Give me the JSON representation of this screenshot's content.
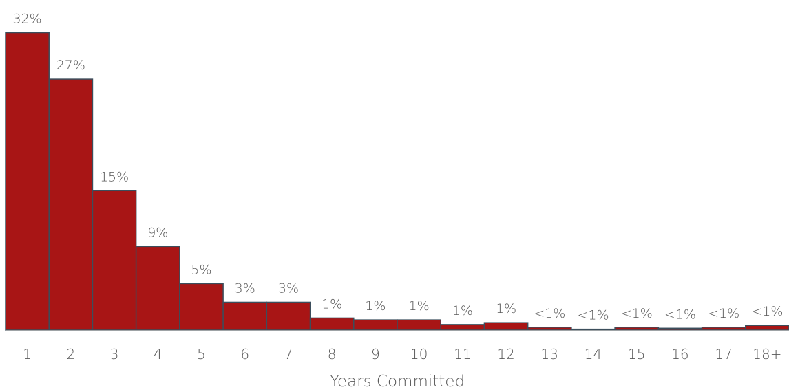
{
  "chart_data": {
    "type": "bar",
    "xlabel": "Years Committed",
    "ylabel": "",
    "ylim": [
      0,
      0.33
    ],
    "grid": false,
    "legend": "none",
    "categories": [
      "1",
      "2",
      "3",
      "4",
      "5",
      "6",
      "7",
      "8",
      "9",
      "10",
      "11",
      "12",
      "13",
      "14",
      "15",
      "16",
      "17",
      "18+"
    ],
    "values": [
      0.32,
      0.27,
      0.15,
      0.09,
      0.05,
      0.03,
      0.03,
      0.013,
      0.011,
      0.011,
      0.006,
      0.008,
      0.003,
      0.001,
      0.003,
      0.002,
      0.003,
      0.005
    ],
    "data_labels": [
      "32%",
      "27%",
      "15%",
      "9%",
      "5%",
      "3%",
      "3%",
      "1%",
      "1%",
      "1%",
      "1%",
      "1%",
      "<1%",
      "<1%",
      "<1%",
      "<1%",
      "<1%",
      "<1%"
    ],
    "colors": {
      "bar_fill": "#A81515",
      "bar_stroke": "#3B4E5C",
      "axis_line": "#BFBFBF",
      "text": "#595959"
    }
  }
}
